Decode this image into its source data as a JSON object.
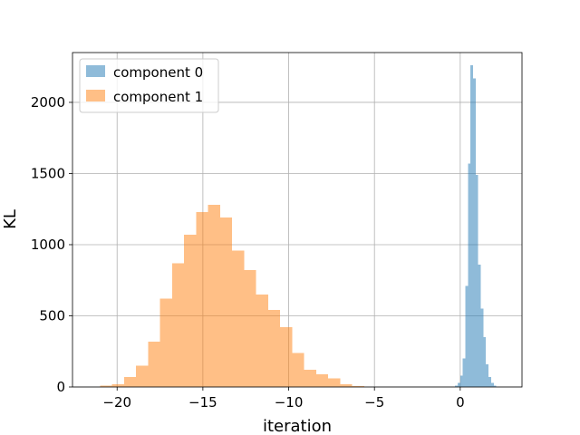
{
  "chart_data": {
    "type": "bar",
    "subtype": "histogram",
    "xlabel": "iteration",
    "ylabel": "KL",
    "xlim": [
      -22.6,
      3.6
    ],
    "ylim": [
      0,
      2350
    ],
    "xticks": [
      -20,
      -15,
      -10,
      -5,
      0
    ],
    "xtick_labels": [
      "−20",
      "−15",
      "−10",
      "−5",
      "0"
    ],
    "yticks": [
      0,
      500,
      1000,
      1500,
      2000
    ],
    "ytick_labels": [
      "0",
      "500",
      "1000",
      "1500",
      "2000"
    ],
    "grid": true,
    "legend": {
      "position": "top-left"
    },
    "series": [
      {
        "name": "component 0",
        "color": "#1f77b4",
        "alpha": 0.5,
        "bin_edges": [
          -0.3,
          -0.15,
          0.0,
          0.15,
          0.3,
          0.45,
          0.6,
          0.75,
          0.9,
          1.05,
          1.2,
          1.35,
          1.5,
          1.65,
          1.8,
          1.95,
          2.1
        ],
        "counts": [
          10,
          30,
          80,
          200,
          710,
          1570,
          2260,
          2170,
          1490,
          860,
          550,
          350,
          160,
          70,
          30,
          10
        ]
      },
      {
        "name": "component 1",
        "color": "#ff7f0e",
        "alpha": 0.5,
        "bin_edges": [
          -21.0,
          -20.3,
          -19.6,
          -18.9,
          -18.2,
          -17.5,
          -16.8,
          -16.1,
          -15.4,
          -14.7,
          -14.0,
          -13.3,
          -12.6,
          -11.9,
          -11.2,
          -10.5,
          -9.8,
          -9.1,
          -8.4,
          -7.7,
          -7.0,
          -6.3,
          -5.6
        ],
        "counts": [
          10,
          20,
          70,
          150,
          320,
          620,
          870,
          1070,
          1230,
          1280,
          1190,
          960,
          820,
          650,
          540,
          420,
          240,
          120,
          90,
          60,
          20,
          5
        ]
      }
    ]
  }
}
